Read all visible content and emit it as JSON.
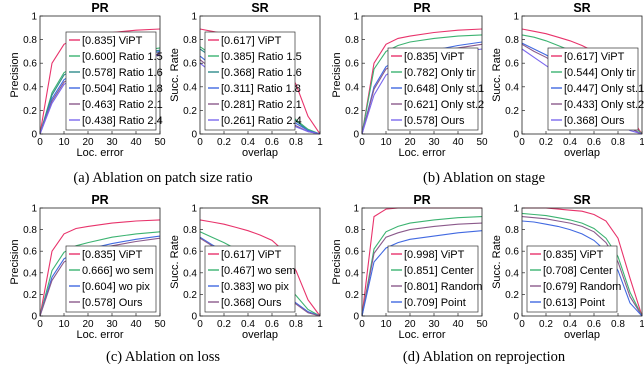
{
  "figure": {
    "captions": [
      "(a) Ablation on patch size ratio",
      "(b) Ablation on stage",
      "(c) Ablation on loss",
      "(d) Ablation on reprojection"
    ]
  },
  "chart_data": [
    {
      "type": "line",
      "group": "a",
      "title": "PR",
      "xlabel": "Loc. error",
      "ylabel": "Precision",
      "xlim": [
        0,
        50
      ],
      "ylim": [
        0,
        1
      ],
      "xticks": [
        0,
        10,
        20,
        30,
        40,
        50
      ],
      "yticks": [
        0,
        0.2,
        0.4,
        0.6,
        0.8,
        1
      ],
      "legend_position": "lower-right",
      "x": [
        0,
        5,
        10,
        15,
        20,
        30,
        40,
        50
      ],
      "series": [
        {
          "name": "[0.835] ViPT",
          "color": "#e8336b",
          "values": [
            0,
            0.6,
            0.76,
            0.81,
            0.83,
            0.86,
            0.88,
            0.89
          ]
        },
        {
          "name": "[0.600] Ratio 1.5",
          "color": "#3cb371",
          "values": [
            0,
            0.35,
            0.52,
            0.58,
            0.61,
            0.66,
            0.7,
            0.73
          ]
        },
        {
          "name": "[0.578] Ratio 1.6",
          "color": "#2e8b8b",
          "values": [
            0,
            0.33,
            0.5,
            0.56,
            0.59,
            0.64,
            0.68,
            0.71
          ]
        },
        {
          "name": "[0.504] Ratio 1.8",
          "color": "#4169e1",
          "values": [
            0,
            0.3,
            0.46,
            0.52,
            0.56,
            0.61,
            0.66,
            0.7
          ]
        },
        {
          "name": "[0.463] Ratio 2.1",
          "color": "#8b5a8b",
          "values": [
            0,
            0.28,
            0.44,
            0.5,
            0.54,
            0.59,
            0.64,
            0.68
          ]
        },
        {
          "name": "[0.438] Ratio 2.4",
          "color": "#7b68ee",
          "values": [
            0,
            0.26,
            0.42,
            0.48,
            0.52,
            0.58,
            0.63,
            0.67
          ]
        }
      ]
    },
    {
      "type": "line",
      "group": "a",
      "title": "SR",
      "xlabel": "overlap",
      "ylabel": "Succ. Rate",
      "xlim": [
        0,
        1
      ],
      "ylim": [
        0,
        1
      ],
      "xticks": [
        0,
        0.2,
        0.4,
        0.6,
        0.8,
        1
      ],
      "yticks": [
        0,
        0.2,
        0.4,
        0.6,
        0.8,
        1
      ],
      "legend_position": "lower-left",
      "x": [
        0,
        0.1,
        0.2,
        0.3,
        0.4,
        0.5,
        0.6,
        0.7,
        0.8,
        0.9,
        1
      ],
      "series": [
        {
          "name": "[0.617] ViPT",
          "color": "#e8336b",
          "values": [
            0.89,
            0.87,
            0.85,
            0.82,
            0.79,
            0.75,
            0.7,
            0.6,
            0.42,
            0.15,
            0
          ]
        },
        {
          "name": "[0.385] Ratio 1.5",
          "color": "#3cb371",
          "values": [
            0.74,
            0.67,
            0.6,
            0.53,
            0.46,
            0.39,
            0.31,
            0.22,
            0.12,
            0.04,
            0
          ]
        },
        {
          "name": "[0.368] Ratio 1.6",
          "color": "#2e8b8b",
          "values": [
            0.72,
            0.65,
            0.58,
            0.51,
            0.44,
            0.37,
            0.29,
            0.2,
            0.11,
            0.03,
            0
          ]
        },
        {
          "name": "[0.311] Ratio 1.8",
          "color": "#4169e1",
          "values": [
            0.66,
            0.58,
            0.51,
            0.44,
            0.37,
            0.3,
            0.23,
            0.16,
            0.09,
            0.03,
            0
          ]
        },
        {
          "name": "[0.281] Ratio 2.1",
          "color": "#8b5a8b",
          "values": [
            0.63,
            0.55,
            0.48,
            0.41,
            0.34,
            0.27,
            0.2,
            0.14,
            0.07,
            0.02,
            0
          ]
        },
        {
          "name": "[0.261] Ratio 2.4",
          "color": "#7b68ee",
          "values": [
            0.6,
            0.52,
            0.45,
            0.38,
            0.31,
            0.25,
            0.18,
            0.12,
            0.06,
            0.02,
            0
          ]
        }
      ]
    },
    {
      "type": "line",
      "group": "b",
      "title": "PR",
      "xlabel": "Loc. error",
      "ylabel": "Precision",
      "xlim": [
        0,
        50
      ],
      "ylim": [
        0,
        1
      ],
      "xticks": [
        0,
        10,
        20,
        30,
        40,
        50
      ],
      "yticks": [
        0,
        0.2,
        0.4,
        0.6,
        0.8,
        1
      ],
      "legend_position": "lower-right",
      "x": [
        0,
        5,
        10,
        15,
        20,
        30,
        40,
        50
      ],
      "series": [
        {
          "name": "[0.835] ViPT",
          "color": "#e8336b",
          "values": [
            0,
            0.6,
            0.76,
            0.81,
            0.83,
            0.86,
            0.88,
            0.89
          ]
        },
        {
          "name": "[0.782] Only tir",
          "color": "#3cb371",
          "values": [
            0,
            0.55,
            0.7,
            0.75,
            0.78,
            0.81,
            0.83,
            0.84
          ]
        },
        {
          "name": "[0.648] Only st.1",
          "color": "#4169e1",
          "values": [
            0,
            0.4,
            0.57,
            0.63,
            0.66,
            0.71,
            0.75,
            0.78
          ]
        },
        {
          "name": "[0.621] Only st.2",
          "color": "#8b5a8b",
          "values": [
            0,
            0.38,
            0.55,
            0.61,
            0.64,
            0.69,
            0.73,
            0.76
          ]
        },
        {
          "name": "[0.578] Ours",
          "color": "#7b68ee",
          "values": [
            0,
            0.33,
            0.5,
            0.56,
            0.6,
            0.65,
            0.69,
            0.72
          ]
        }
      ]
    },
    {
      "type": "line",
      "group": "b",
      "title": "SR",
      "xlabel": "overlap",
      "ylabel": "Succ. Rate",
      "xlim": [
        0,
        1
      ],
      "ylim": [
        0,
        1
      ],
      "xticks": [
        0,
        0.2,
        0.4,
        0.6,
        0.8,
        1
      ],
      "yticks": [
        0,
        0.2,
        0.4,
        0.6,
        0.8,
        1
      ],
      "legend_position": "lower-right",
      "x": [
        0,
        0.1,
        0.2,
        0.3,
        0.4,
        0.5,
        0.6,
        0.7,
        0.8,
        0.9,
        1
      ],
      "series": [
        {
          "name": "[0.617] ViPT",
          "color": "#e8336b",
          "values": [
            0.89,
            0.87,
            0.85,
            0.82,
            0.79,
            0.75,
            0.7,
            0.6,
            0.42,
            0.15,
            0
          ]
        },
        {
          "name": "[0.544] Only tir",
          "color": "#3cb371",
          "values": [
            0.84,
            0.82,
            0.79,
            0.75,
            0.71,
            0.65,
            0.57,
            0.46,
            0.3,
            0.1,
            0
          ]
        },
        {
          "name": "[0.447] Only st.1",
          "color": "#4169e1",
          "values": [
            0.77,
            0.72,
            0.67,
            0.61,
            0.55,
            0.48,
            0.39,
            0.29,
            0.17,
            0.05,
            0
          ]
        },
        {
          "name": "[0.433] Only st.2",
          "color": "#8b5a8b",
          "values": [
            0.76,
            0.7,
            0.65,
            0.59,
            0.53,
            0.46,
            0.37,
            0.27,
            0.15,
            0.05,
            0
          ]
        },
        {
          "name": "[0.368] Ours",
          "color": "#7b68ee",
          "values": [
            0.72,
            0.65,
            0.58,
            0.51,
            0.44,
            0.37,
            0.29,
            0.2,
            0.11,
            0.03,
            0
          ]
        }
      ]
    },
    {
      "type": "line",
      "group": "c",
      "title": "PR",
      "xlabel": "Loc. error",
      "ylabel": "Precision",
      "xlim": [
        0,
        50
      ],
      "ylim": [
        0,
        1
      ],
      "xticks": [
        0,
        10,
        20,
        30,
        40,
        50
      ],
      "yticks": [
        0,
        0.2,
        0.4,
        0.6,
        0.8,
        1
      ],
      "legend_position": "lower-right",
      "x": [
        0,
        5,
        10,
        15,
        20,
        30,
        40,
        50
      ],
      "series": [
        {
          "name": "[0.835] ViPT",
          "color": "#e8336b",
          "values": [
            0,
            0.6,
            0.76,
            0.81,
            0.83,
            0.86,
            0.88,
            0.89
          ]
        },
        {
          "name": "0.666] wo sem",
          "color": "#3cb371",
          "values": [
            0,
            0.42,
            0.59,
            0.65,
            0.68,
            0.73,
            0.76,
            0.78
          ]
        },
        {
          "name": "[0.604] wo pix",
          "color": "#4169e1",
          "values": [
            0,
            0.36,
            0.53,
            0.59,
            0.62,
            0.67,
            0.71,
            0.74
          ]
        },
        {
          "name": "[0.578] Ours",
          "color": "#8b5a8b",
          "values": [
            0,
            0.33,
            0.5,
            0.56,
            0.6,
            0.65,
            0.69,
            0.72
          ]
        }
      ]
    },
    {
      "type": "line",
      "group": "c",
      "title": "SR",
      "xlabel": "overlap",
      "ylabel": "Succ. Rate",
      "xlim": [
        0,
        1
      ],
      "ylim": [
        0,
        1
      ],
      "xticks": [
        0,
        0.2,
        0.4,
        0.6,
        0.8,
        1
      ],
      "yticks": [
        0,
        0.2,
        0.4,
        0.6,
        0.8,
        1
      ],
      "legend_position": "lower-left",
      "x": [
        0,
        0.1,
        0.2,
        0.3,
        0.4,
        0.5,
        0.6,
        0.7,
        0.8,
        0.9,
        1
      ],
      "series": [
        {
          "name": "[0.617] ViPT",
          "color": "#e8336b",
          "values": [
            0.89,
            0.87,
            0.85,
            0.82,
            0.79,
            0.75,
            0.7,
            0.6,
            0.42,
            0.15,
            0
          ]
        },
        {
          "name": "[0.467] wo sem",
          "color": "#3cb371",
          "values": [
            0.78,
            0.73,
            0.68,
            0.62,
            0.56,
            0.49,
            0.41,
            0.31,
            0.19,
            0.06,
            0
          ]
        },
        {
          "name": "[0.383] wo pix",
          "color": "#4169e1",
          "values": [
            0.73,
            0.66,
            0.6,
            0.53,
            0.46,
            0.39,
            0.31,
            0.22,
            0.12,
            0.04,
            0
          ]
        },
        {
          "name": "[0.368] Ours",
          "color": "#8b5a8b",
          "values": [
            0.72,
            0.65,
            0.58,
            0.51,
            0.44,
            0.37,
            0.29,
            0.2,
            0.11,
            0.03,
            0
          ]
        }
      ]
    },
    {
      "type": "line",
      "group": "d",
      "title": "PR",
      "xlabel": "Loc. error",
      "ylabel": "Precision",
      "xlim": [
        0,
        50
      ],
      "ylim": [
        0,
        1
      ],
      "xticks": [
        0,
        10,
        20,
        30,
        40,
        50
      ],
      "yticks": [
        0,
        0.2,
        0.4,
        0.6,
        0.8,
        1
      ],
      "legend_position": "lower-right",
      "x": [
        0,
        5,
        10,
        15,
        20,
        30,
        40,
        50
      ],
      "series": [
        {
          "name": "[0.998] ViPT",
          "color": "#e8336b",
          "values": [
            0,
            0.92,
            0.99,
            1.0,
            1.0,
            1.0,
            1.0,
            1.0
          ]
        },
        {
          "name": "[0.851] Center",
          "color": "#3cb371",
          "values": [
            0,
            0.62,
            0.78,
            0.83,
            0.86,
            0.89,
            0.91,
            0.92
          ]
        },
        {
          "name": "[0.801] Random",
          "color": "#8b5a8b",
          "values": [
            0,
            0.58,
            0.73,
            0.77,
            0.8,
            0.83,
            0.85,
            0.86
          ]
        },
        {
          "name": "[0.709] Point",
          "color": "#4169e1",
          "values": [
            0,
            0.5,
            0.63,
            0.68,
            0.71,
            0.74,
            0.77,
            0.79
          ]
        }
      ]
    },
    {
      "type": "line",
      "group": "d",
      "title": "SR",
      "xlabel": "overlap",
      "ylabel": "Succ. Rate",
      "xlim": [
        0,
        1
      ],
      "ylim": [
        0,
        1
      ],
      "xticks": [
        0,
        0.2,
        0.4,
        0.6,
        0.8,
        1
      ],
      "yticks": [
        0,
        0.2,
        0.4,
        0.6,
        0.8,
        1
      ],
      "legend_position": "lower-left",
      "x": [
        0,
        0.1,
        0.2,
        0.3,
        0.4,
        0.5,
        0.6,
        0.7,
        0.8,
        0.9,
        1
      ],
      "series": [
        {
          "name": "[0.835] ViPT",
          "color": "#e8336b",
          "values": [
            1.0,
            1.0,
            1.0,
            0.99,
            0.98,
            0.97,
            0.94,
            0.88,
            0.72,
            0.35,
            0
          ]
        },
        {
          "name": "[0.708] Center",
          "color": "#3cb371",
          "values": [
            0.95,
            0.94,
            0.93,
            0.91,
            0.89,
            0.86,
            0.81,
            0.72,
            0.55,
            0.22,
            0
          ]
        },
        {
          "name": "[0.679] Random",
          "color": "#8b5a8b",
          "values": [
            0.92,
            0.91,
            0.9,
            0.88,
            0.86,
            0.83,
            0.78,
            0.68,
            0.5,
            0.18,
            0
          ]
        },
        {
          "name": "[0.613] Point",
          "color": "#4169e1",
          "values": [
            0.88,
            0.87,
            0.85,
            0.83,
            0.8,
            0.76,
            0.7,
            0.6,
            0.42,
            0.12,
            0
          ]
        }
      ]
    }
  ]
}
